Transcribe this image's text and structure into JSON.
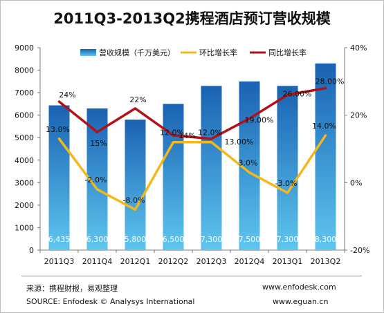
{
  "title": "2011Q3-2013Q2携程酒店预订营收规模",
  "footer": {
    "source_cn": "来源：携程财报，易观整理",
    "source_en": "SOURCE: Enfodesk © Analysys International",
    "site1": "www.enfodesk.com",
    "site2": "www.eguan.cn"
  },
  "colors": {
    "bar_top": "#1a62b3",
    "bar_bottom": "#5ec6ee",
    "qoq_line": "#f5b81a",
    "yoy_line": "#b01218"
  },
  "chart_data": {
    "type": "bar",
    "title": "2011Q3-2013Q2携程酒店预订营收规模",
    "categories": [
      "2011Q3",
      "2011Q4",
      "2012Q1",
      "2012Q2",
      "2012Q3",
      "2012Q4",
      "2013Q1",
      "2013Q2"
    ],
    "ylim": [
      0,
      9000
    ],
    "y_ticks": [
      "0",
      "1000",
      "2000",
      "3000",
      "4000",
      "5000",
      "6000",
      "7000",
      "8000",
      "9000"
    ],
    "y2lim": [
      -20,
      40
    ],
    "y2_ticks": [
      "-20%",
      "0%",
      "20%",
      "40%"
    ],
    "grid": false,
    "legend_position": "top",
    "series": [
      {
        "name": "营收规模（千万美元）",
        "type": "bar",
        "axis": "left",
        "values": [
          6435,
          6300,
          5800,
          6500,
          7300,
          7500,
          7300,
          8300
        ],
        "labels": [
          "6,435",
          "6,300",
          "5,800",
          "6,500",
          "7,300",
          "7,500",
          "7,300",
          "8,300"
        ]
      },
      {
        "name": "环比增长率",
        "type": "line",
        "axis": "right",
        "values": [
          13.0,
          -2.0,
          -8.0,
          12.0,
          12.0,
          3.0,
          -3.0,
          14.0
        ],
        "labels": [
          "13.0%",
          "-2.0%",
          "-8.0%",
          "12.0%",
          "12.0%",
          "3.0%",
          "-3.0%",
          "14.0%"
        ]
      },
      {
        "name": "同比增长率",
        "type": "line",
        "axis": "right",
        "values": [
          24,
          15,
          22,
          14,
          13,
          19,
          26,
          28
        ],
        "labels": [
          "24%",
          "15%",
          "22%",
          "14%",
          "13.00%",
          "19.00%",
          "26.00%",
          "28.00%"
        ]
      }
    ]
  }
}
